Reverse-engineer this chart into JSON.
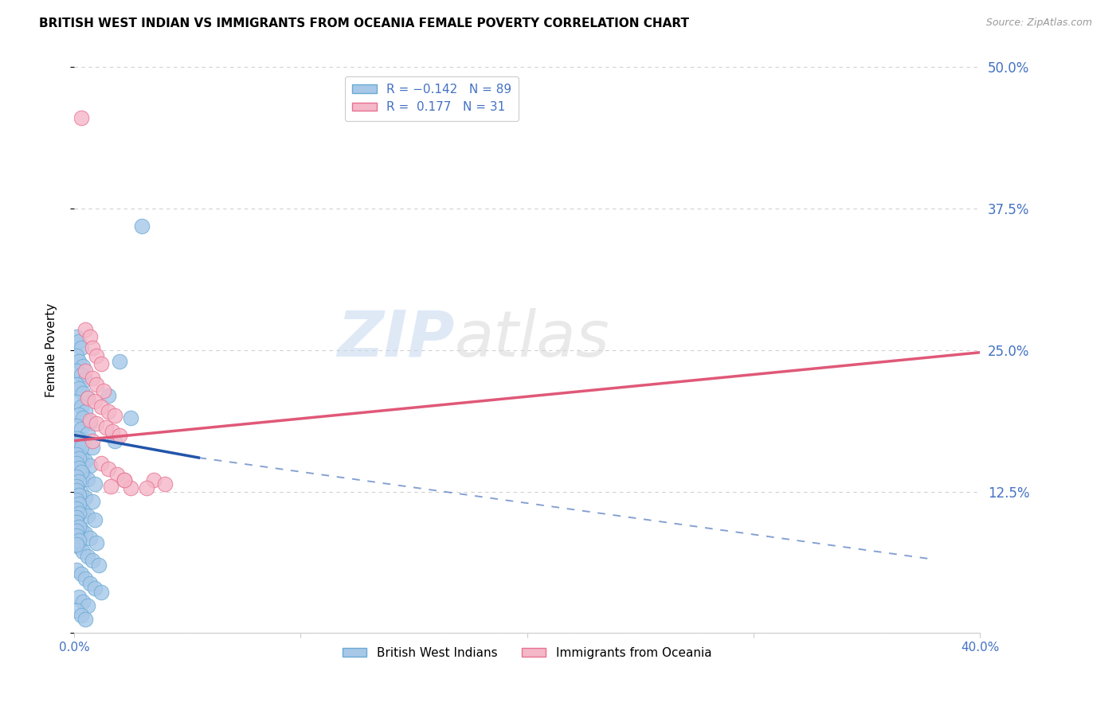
{
  "title": "BRITISH WEST INDIAN VS IMMIGRANTS FROM OCEANIA FEMALE POVERTY CORRELATION CHART",
  "source": "Source: ZipAtlas.com",
  "ylabel": "Female Poverty",
  "yticks": [
    0.0,
    0.125,
    0.25,
    0.375,
    0.5
  ],
  "ytick_labels": [
    "",
    "12.5%",
    "25.0%",
    "37.5%",
    "50.0%"
  ],
  "xlim": [
    0.0,
    0.4
  ],
  "ylim": [
    0.0,
    0.5
  ],
  "watermark_zip": "ZIP",
  "watermark_atlas": "atlas",
  "blue_scatter_color": "#a8c8e8",
  "blue_scatter_edge": "#6aaad4",
  "pink_scatter_color": "#f4b8c8",
  "pink_scatter_edge": "#e87090",
  "blue_points": [
    [
      0.001,
      0.262
    ],
    [
      0.002,
      0.258
    ],
    [
      0.003,
      0.252
    ],
    [
      0.001,
      0.245
    ],
    [
      0.002,
      0.24
    ],
    [
      0.004,
      0.236
    ],
    [
      0.001,
      0.232
    ],
    [
      0.003,
      0.228
    ],
    [
      0.005,
      0.224
    ],
    [
      0.001,
      0.22
    ],
    [
      0.002,
      0.216
    ],
    [
      0.004,
      0.212
    ],
    [
      0.006,
      0.208
    ],
    [
      0.001,
      0.204
    ],
    [
      0.003,
      0.2
    ],
    [
      0.005,
      0.196
    ],
    [
      0.002,
      0.193
    ],
    [
      0.004,
      0.19
    ],
    [
      0.007,
      0.186
    ],
    [
      0.001,
      0.183
    ],
    [
      0.003,
      0.18
    ],
    [
      0.006,
      0.176
    ],
    [
      0.002,
      0.172
    ],
    [
      0.004,
      0.168
    ],
    [
      0.008,
      0.164
    ],
    [
      0.001,
      0.16
    ],
    [
      0.003,
      0.156
    ],
    [
      0.005,
      0.152
    ],
    [
      0.007,
      0.148
    ],
    [
      0.002,
      0.144
    ],
    [
      0.004,
      0.14
    ],
    [
      0.006,
      0.136
    ],
    [
      0.009,
      0.132
    ],
    [
      0.001,
      0.128
    ],
    [
      0.003,
      0.124
    ],
    [
      0.005,
      0.12
    ],
    [
      0.008,
      0.116
    ],
    [
      0.002,
      0.112
    ],
    [
      0.004,
      0.108
    ],
    [
      0.006,
      0.104
    ],
    [
      0.009,
      0.1
    ],
    [
      0.001,
      0.096
    ],
    [
      0.003,
      0.092
    ],
    [
      0.005,
      0.088
    ],
    [
      0.007,
      0.084
    ],
    [
      0.01,
      0.08
    ],
    [
      0.002,
      0.076
    ],
    [
      0.004,
      0.072
    ],
    [
      0.006,
      0.068
    ],
    [
      0.008,
      0.064
    ],
    [
      0.011,
      0.06
    ],
    [
      0.001,
      0.056
    ],
    [
      0.003,
      0.052
    ],
    [
      0.005,
      0.048
    ],
    [
      0.007,
      0.044
    ],
    [
      0.009,
      0.04
    ],
    [
      0.012,
      0.036
    ],
    [
      0.002,
      0.032
    ],
    [
      0.004,
      0.028
    ],
    [
      0.006,
      0.024
    ],
    [
      0.001,
      0.02
    ],
    [
      0.003,
      0.016
    ],
    [
      0.005,
      0.012
    ],
    [
      0.001,
      0.172
    ],
    [
      0.002,
      0.168
    ],
    [
      0.003,
      0.164
    ],
    [
      0.001,
      0.158
    ],
    [
      0.002,
      0.154
    ],
    [
      0.001,
      0.15
    ],
    [
      0.002,
      0.146
    ],
    [
      0.003,
      0.142
    ],
    [
      0.001,
      0.138
    ],
    [
      0.002,
      0.134
    ],
    [
      0.001,
      0.13
    ],
    [
      0.001,
      0.126
    ],
    [
      0.002,
      0.122
    ],
    [
      0.001,
      0.118
    ],
    [
      0.002,
      0.114
    ],
    [
      0.001,
      0.11
    ],
    [
      0.002,
      0.106
    ],
    [
      0.001,
      0.102
    ],
    [
      0.001,
      0.098
    ],
    [
      0.002,
      0.094
    ],
    [
      0.001,
      0.09
    ],
    [
      0.001,
      0.086
    ],
    [
      0.002,
      0.082
    ],
    [
      0.001,
      0.078
    ],
    [
      0.03,
      0.36
    ],
    [
      0.02,
      0.24
    ],
    [
      0.015,
      0.21
    ],
    [
      0.025,
      0.19
    ],
    [
      0.018,
      0.17
    ]
  ],
  "pink_points": [
    [
      0.003,
      0.455
    ],
    [
      0.005,
      0.268
    ],
    [
      0.007,
      0.262
    ],
    [
      0.008,
      0.252
    ],
    [
      0.01,
      0.245
    ],
    [
      0.012,
      0.238
    ],
    [
      0.005,
      0.232
    ],
    [
      0.008,
      0.225
    ],
    [
      0.01,
      0.22
    ],
    [
      0.013,
      0.214
    ],
    [
      0.006,
      0.208
    ],
    [
      0.009,
      0.205
    ],
    [
      0.012,
      0.2
    ],
    [
      0.015,
      0.196
    ],
    [
      0.018,
      0.192
    ],
    [
      0.007,
      0.188
    ],
    [
      0.01,
      0.185
    ],
    [
      0.014,
      0.182
    ],
    [
      0.017,
      0.178
    ],
    [
      0.02,
      0.175
    ],
    [
      0.008,
      0.17
    ],
    [
      0.012,
      0.15
    ],
    [
      0.015,
      0.145
    ],
    [
      0.019,
      0.14
    ],
    [
      0.022,
      0.135
    ],
    [
      0.016,
      0.13
    ],
    [
      0.025,
      0.128
    ],
    [
      0.035,
      0.135
    ],
    [
      0.04,
      0.132
    ],
    [
      0.032,
      0.128
    ],
    [
      0.022,
      0.135
    ]
  ],
  "blue_trend": {
    "color": "#2255aa",
    "x_solid_start": 0.0,
    "y_solid_start": 0.175,
    "x_solid_end": 0.055,
    "y_solid_end": 0.155,
    "x_dash_end": 0.38,
    "y_dash_end": 0.065
  },
  "pink_trend": {
    "color": "#e05878",
    "x_start": 0.0,
    "y_start": 0.17,
    "x_end": 0.4,
    "y_end": 0.248
  },
  "background_color": "#ffffff",
  "grid_color": "#d0d0d0",
  "title_fontsize": 11,
  "axis_label_color": "#4472c4"
}
